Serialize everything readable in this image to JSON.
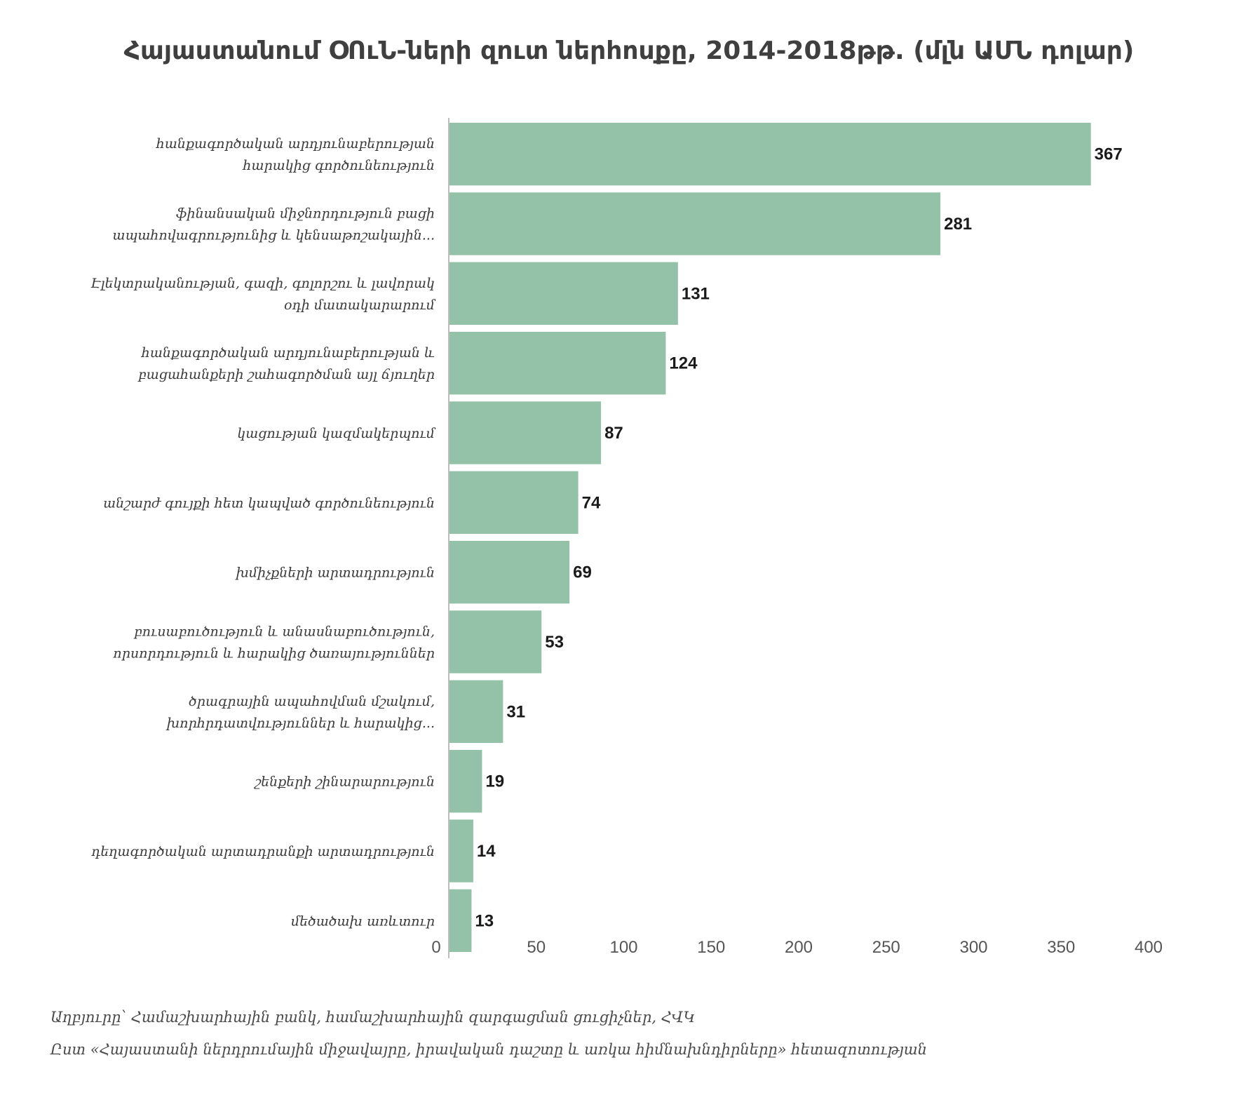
{
  "chart_data": {
    "type": "bar",
    "orientation": "horizontal",
    "title": "Հայաստանում ՕՈւՆ-ների զուտ ներհոսքը, 2014-2018թթ. (մլն ԱՄՆ դոլար)",
    "categories": [
      [
        "հանքագործական արդյունաբերության",
        "հարակից գործունեություն"
      ],
      [
        "ֆինանսական միջնորդություն  բացի",
        "ապահովագրությունից և կենսաթոշակային..."
      ],
      [
        "Էլեկտրականության, գազի, գոլորշու և լավորակ",
        "օդի մատակարարում"
      ],
      [
        "հանքագործական արդյունաբերության և",
        "բացահանքերի շահագործման այլ ճյուղեր"
      ],
      [
        "կացության կազմակերպում"
      ],
      [
        "անշարժ գույքի հետ կապված գործունեություն"
      ],
      [
        "խմիչքների արտադրություն"
      ],
      [
        "բուսաբուծություն և անասնաբուծություն,",
        "որսորդություն և հարակից ծառայություններ"
      ],
      [
        "ծրագրային ապահովման մշակում,",
        "խորհրդատվություններ և հարակից..."
      ],
      [
        "շենքերի շինարարություն"
      ],
      [
        "դեղագործական արտադրանքի արտադրություն"
      ],
      [
        "մեծածախ առևտուր"
      ]
    ],
    "values": [
      367,
      281,
      131,
      124,
      87,
      74,
      69,
      53,
      31,
      19,
      14,
      13
    ],
    "xlim": [
      0,
      400
    ],
    "xticks": [
      0,
      50,
      100,
      150,
      200,
      250,
      300,
      350,
      400
    ],
    "xlabel": "",
    "ylabel": "",
    "bar_color": "#93c2a8",
    "axis_color": "#bdbdbd",
    "grid": false,
    "legend": "none"
  },
  "source": {
    "line1": "Աղբյուրը՝  Համաշխարհային բանկ, համաշխարհային զարգացման ցուցիչներ, ՀՎԿ",
    "line2": "Ըստ «Հայաստանի ներդրումային միջավայրը, իրավական դաշտը և առկա հիմնախնդիրները» հետազոտության"
  }
}
